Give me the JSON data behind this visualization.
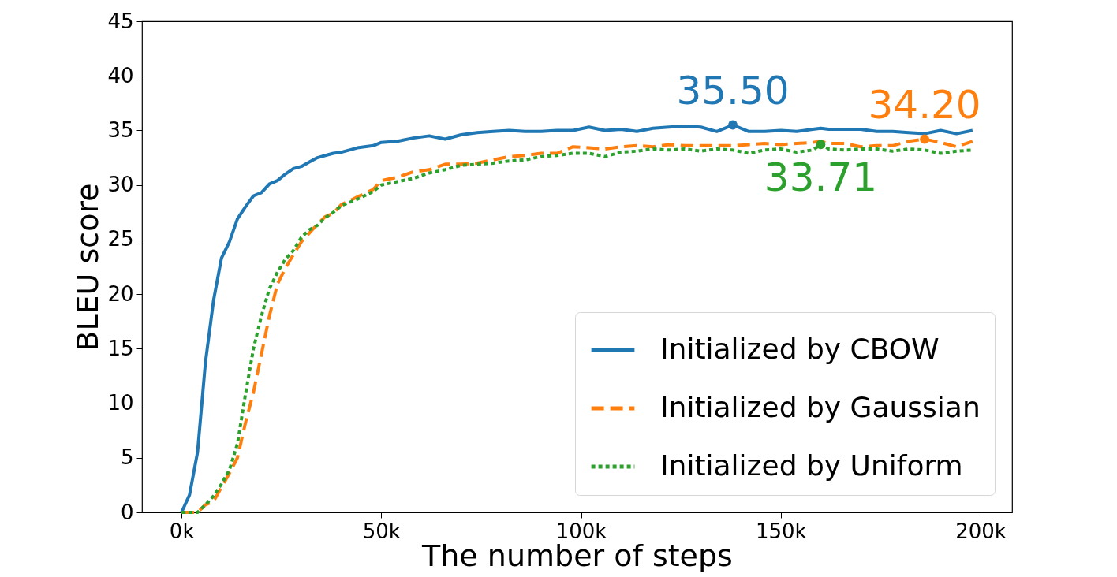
{
  "chart_data": {
    "type": "line",
    "xlabel": "The number of steps",
    "ylabel": "BLEU score",
    "x": [
      0,
      2000,
      4000,
      6000,
      8000,
      10000,
      12000,
      14000,
      16000,
      18000,
      20000,
      22000,
      24000,
      26000,
      28000,
      30000,
      32000,
      34000,
      36000,
      38000,
      40000,
      44000,
      48000,
      50000,
      54000,
      58000,
      62000,
      66000,
      70000,
      74000,
      78000,
      82000,
      86000,
      90000,
      94000,
      98000,
      102000,
      106000,
      110000,
      114000,
      118000,
      122000,
      126000,
      130000,
      134000,
      138000,
      142000,
      146000,
      150000,
      154000,
      158000,
      160000,
      162000,
      166000,
      170000,
      174000,
      178000,
      182000,
      186000,
      190000,
      194000,
      198000
    ],
    "series": [
      {
        "name": "Initialized by CBOW",
        "color": "#1f77b4",
        "line_style": "solid",
        "values": [
          0,
          1.6,
          5.5,
          13.8,
          19.4,
          23.3,
          24.8,
          26.9,
          28.0,
          29.0,
          29.3,
          30.1,
          30.4,
          31.0,
          31.5,
          31.7,
          32.1,
          32.5,
          32.7,
          32.9,
          33.0,
          33.4,
          33.6,
          33.9,
          34.0,
          34.3,
          34.5,
          34.2,
          34.6,
          34.8,
          34.9,
          35.0,
          34.9,
          34.9,
          35.0,
          35.0,
          35.3,
          35.0,
          35.1,
          34.9,
          35.2,
          35.3,
          35.4,
          35.3,
          34.9,
          35.5,
          34.9,
          34.9,
          35.0,
          34.9,
          35.1,
          35.2,
          35.1,
          35.1,
          35.1,
          34.9,
          34.9,
          34.8,
          34.7,
          35.0,
          34.7,
          35.0
        ],
        "value_labels": [
          null,
          null,
          null,
          null,
          null,
          null,
          null,
          null,
          null,
          null,
          null,
          null,
          null,
          null,
          null,
          null,
          null,
          null,
          null,
          null,
          null,
          null,
          null,
          null,
          null,
          null,
          null,
          null,
          null,
          null,
          null,
          null,
          null,
          null,
          null,
          null,
          null,
          null,
          null,
          null,
          null,
          null,
          null,
          null,
          null,
          "35.50",
          null,
          null,
          null,
          null,
          null,
          null,
          null,
          null,
          null,
          null,
          null,
          null,
          null,
          null,
          null,
          null
        ]
      },
      {
        "name": "Initialized by Gaussian",
        "color": "#ff7f0e",
        "line_style": "dashed",
        "values": [
          0,
          0,
          0,
          0.7,
          1.0,
          2.3,
          3.6,
          5.0,
          8.2,
          11.0,
          14.5,
          18.0,
          20.9,
          22.4,
          23.6,
          24.8,
          25.6,
          26.4,
          27.1,
          27.4,
          28.2,
          28.9,
          29.6,
          30.4,
          30.7,
          31.2,
          31.4,
          31.9,
          31.9,
          32.0,
          32.3,
          32.6,
          32.7,
          32.9,
          32.9,
          33.5,
          33.4,
          33.3,
          33.5,
          33.6,
          33.5,
          33.7,
          33.6,
          33.6,
          33.6,
          33.6,
          33.7,
          33.8,
          33.7,
          33.8,
          33.9,
          34.0,
          33.8,
          33.8,
          33.5,
          33.6,
          33.6,
          34.0,
          34.2,
          33.9,
          33.5,
          34.0
        ],
        "value_labels": [
          null,
          null,
          null,
          null,
          null,
          null,
          null,
          null,
          null,
          null,
          null,
          null,
          null,
          null,
          null,
          null,
          null,
          null,
          null,
          null,
          null,
          null,
          null,
          null,
          null,
          null,
          null,
          null,
          null,
          null,
          null,
          null,
          null,
          null,
          null,
          null,
          null,
          null,
          null,
          null,
          null,
          null,
          null,
          null,
          null,
          null,
          null,
          null,
          null,
          null,
          null,
          null,
          null,
          null,
          null,
          null,
          null,
          null,
          "34.20",
          null,
          null,
          null
        ]
      },
      {
        "name": "Initialized by Uniform",
        "color": "#2ca02c",
        "line_style": "dotted",
        "values": [
          0,
          0,
          0,
          0.7,
          1.5,
          2.6,
          3.9,
          6.3,
          10.8,
          15.0,
          18.0,
          20.5,
          22.0,
          23.2,
          24.0,
          25.2,
          25.9,
          26.3,
          27.0,
          27.5,
          28.1,
          28.7,
          29.4,
          30.0,
          30.3,
          30.6,
          31.1,
          31.4,
          31.8,
          31.9,
          32.0,
          32.2,
          32.3,
          32.6,
          32.7,
          32.9,
          32.9,
          32.6,
          33.0,
          33.1,
          33.3,
          33.2,
          33.3,
          33.1,
          33.3,
          33.2,
          32.9,
          33.2,
          33.3,
          33.0,
          33.2,
          33.71,
          33.3,
          33.2,
          33.3,
          33.3,
          33.1,
          33.3,
          33.2,
          32.9,
          33.1,
          33.2
        ],
        "value_labels": [
          null,
          null,
          null,
          null,
          null,
          null,
          null,
          null,
          null,
          null,
          null,
          null,
          null,
          null,
          null,
          null,
          null,
          null,
          null,
          null,
          null,
          null,
          null,
          null,
          null,
          null,
          null,
          null,
          null,
          null,
          null,
          null,
          null,
          null,
          null,
          null,
          null,
          null,
          null,
          null,
          null,
          null,
          null,
          null,
          null,
          null,
          null,
          null,
          null,
          null,
          null,
          "33.71",
          null,
          null,
          null,
          null,
          null,
          null,
          null,
          null,
          null,
          null
        ]
      }
    ],
    "xlim": [
      -9900,
      207900
    ],
    "xticks": [
      {
        "value": 0,
        "label": "0k"
      },
      {
        "value": 50000,
        "label": "50k"
      },
      {
        "value": 100000,
        "label": "100k"
      },
      {
        "value": 150000,
        "label": "150k"
      },
      {
        "value": 200000,
        "label": "200k"
      }
    ],
    "ylim": [
      0,
      45
    ],
    "yticks": [
      0,
      5,
      10,
      15,
      20,
      25,
      30,
      35,
      40,
      45
    ],
    "grid": false,
    "legend": "bottom right"
  }
}
